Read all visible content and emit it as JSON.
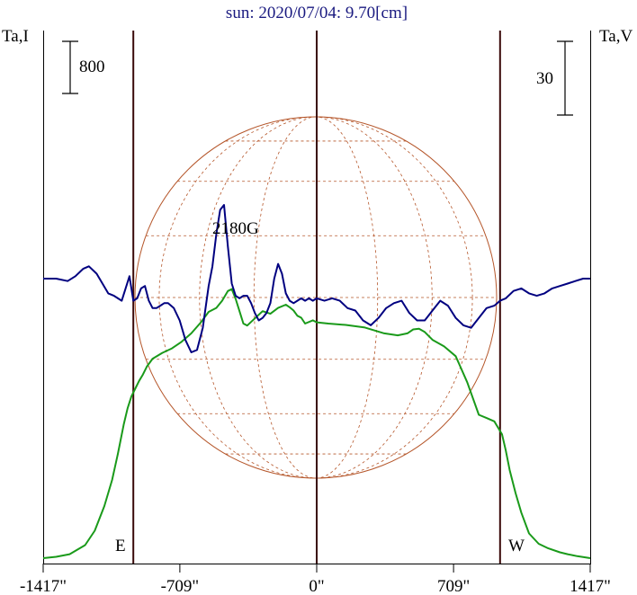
{
  "chart_data": {
    "type": "line",
    "title": "sun: 2020/07/04: 9.70[cm]",
    "left_axis_label": "Ta,I",
    "right_axis_label": "Ta,V",
    "scale_bar_left_label": "800",
    "scale_bar_right_label": "30",
    "limb_labels": {
      "east": "E",
      "west": "W"
    },
    "annotations": [
      {
        "text": "2180G",
        "x": -440,
        "y": 0
      }
    ],
    "x_ticks": [
      {
        "value": -1417,
        "label": "-1417\""
      },
      {
        "value": -709,
        "label": "-709\""
      },
      {
        "value": 0,
        "label": "0\""
      },
      {
        "value": 709,
        "label": "709\""
      },
      {
        "value": 1417,
        "label": "1417\""
      }
    ],
    "xlim": [
      -1417,
      1417
    ],
    "limb_lines": [
      -950,
      0,
      950
    ],
    "grid": false,
    "colors": {
      "intensity": "#1a9a1a",
      "polarization": "#000080",
      "sun_disk": "#b5562a",
      "limb": "#3a0a0a",
      "title": "#1a1a80"
    },
    "series": [
      {
        "name": "",
        "color": "#1a9a1a",
        "x": [
          -1417,
          -1350,
          -1280,
          -1200,
          -1150,
          -1100,
          -1060,
          -1030,
          -1000,
          -980,
          -960,
          -940,
          -920,
          -900,
          -880,
          -850,
          -800,
          -750,
          -700,
          -650,
          -600,
          -560,
          -520,
          -490,
          -460,
          -440,
          -420,
          -400,
          -380,
          -360,
          -320,
          -280,
          -240,
          -200,
          -160,
          -140,
          -120,
          -100,
          -80,
          -60,
          -20,
          0,
          60,
          150,
          250,
          350,
          420,
          470,
          500,
          530,
          560,
          600,
          660,
          720,
          780,
          840,
          880,
          920,
          940,
          960,
          980,
          1000,
          1030,
          1060,
          1100,
          1150,
          1200,
          1260,
          1300,
          1350,
          1417
        ],
        "y": [
          0,
          20,
          60,
          200,
          420,
          800,
          1200,
          1600,
          2050,
          2300,
          2480,
          2600,
          2720,
          2820,
          2940,
          3060,
          3150,
          3220,
          3320,
          3450,
          3620,
          3780,
          3840,
          3950,
          4100,
          4130,
          3980,
          3790,
          3600,
          3570,
          3680,
          3790,
          3750,
          3840,
          3890,
          3850,
          3800,
          3720,
          3690,
          3600,
          3650,
          3620,
          3600,
          3580,
          3540,
          3450,
          3420,
          3450,
          3510,
          3520,
          3470,
          3350,
          3250,
          3100,
          2700,
          2200,
          2150,
          2100,
          2000,
          1900,
          1650,
          1350,
          1000,
          700,
          380,
          220,
          150,
          90,
          60,
          30,
          0
        ]
      },
      {
        "name": "",
        "color": "#000080",
        "x": [
          -1417,
          -1350,
          -1290,
          -1250,
          -1210,
          -1180,
          -1140,
          -1110,
          -1080,
          -1050,
          -1030,
          -1010,
          -990,
          -970,
          -950,
          -930,
          -910,
          -890,
          -870,
          -850,
          -830,
          -810,
          -790,
          -770,
          -740,
          -710,
          -680,
          -650,
          -620,
          -590,
          -560,
          -540,
          -520,
          -500,
          -480,
          -460,
          -440,
          -420,
          -400,
          -380,
          -360,
          -340,
          -320,
          -300,
          -280,
          -260,
          -240,
          -220,
          -200,
          -180,
          -160,
          -140,
          -120,
          -100,
          -80,
          -60,
          -40,
          -20,
          0,
          40,
          80,
          120,
          160,
          200,
          240,
          280,
          320,
          360,
          400,
          440,
          480,
          520,
          560,
          600,
          640,
          680,
          720,
          760,
          800,
          840,
          880,
          920,
          950,
          980,
          1020,
          1060,
          1100,
          1140,
          1180,
          1220,
          1260,
          1300,
          1340,
          1380,
          1417
        ],
        "y": [
          0,
          0,
          -1,
          1,
          4,
          5,
          2,
          -2,
          -6,
          -7,
          -8,
          -9,
          -4,
          1,
          -9,
          -8,
          -4,
          -3,
          -9,
          -12,
          -12,
          -11,
          -10,
          -10,
          -12,
          -17,
          -25,
          -30,
          -29,
          -20,
          -3,
          5,
          18,
          28,
          30,
          13,
          -2,
          -7,
          -8,
          -7,
          -7,
          -10,
          -14,
          -17,
          -16,
          -14,
          -10,
          0,
          6,
          2,
          -6,
          -9,
          -10,
          -9,
          -8,
          -9,
          -8,
          -9,
          -8,
          -9,
          -8,
          -9,
          -12,
          -13,
          -17,
          -19,
          -16,
          -12,
          -10,
          -9,
          -14,
          -17,
          -17,
          -13,
          -9,
          -11,
          -16,
          -19,
          -20,
          -16,
          -12,
          -11,
          -9,
          -8,
          -5,
          -4,
          -6,
          -7,
          -6,
          -4,
          -3,
          -2,
          -1,
          0,
          0
        ]
      }
    ],
    "left_axis_scale": {
      "per_bar": 800
    },
    "right_axis_scale": {
      "per_bar": 30
    }
  }
}
